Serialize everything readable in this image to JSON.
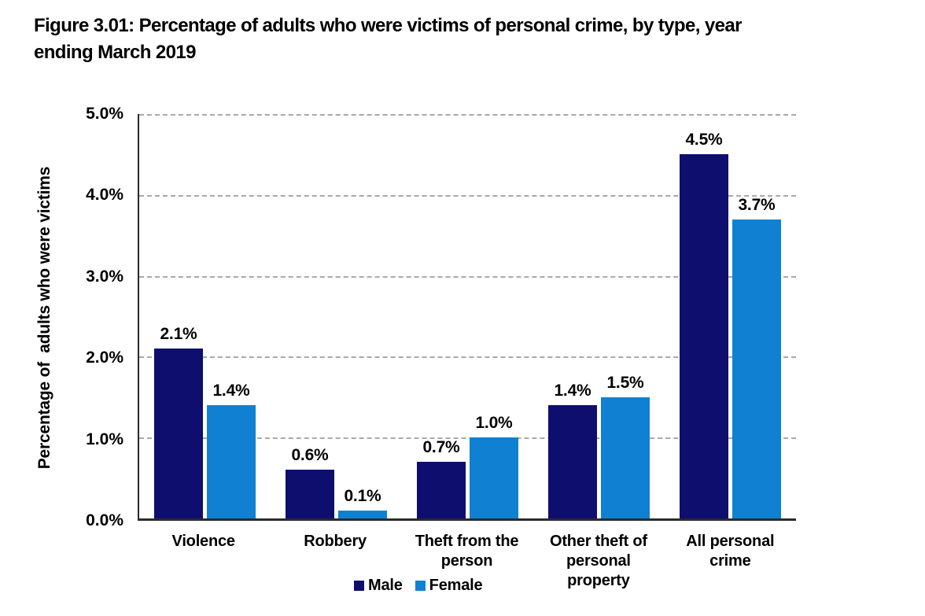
{
  "figure": {
    "title_line1": "Figure 3.01: Percentage of adults who were victims of personal crime, by type, year",
    "title_line2": "ending March 2019"
  },
  "colors": {
    "male": "#0e0e6f",
    "female": "#1081d2",
    "axis": "#2b2b2b",
    "gridline": "#a9a9a9"
  },
  "legend": {
    "items": [
      {
        "label": "Male",
        "color": "#0e0e6f"
      },
      {
        "label": "Female",
        "color": "#1081d2"
      }
    ]
  },
  "chart_data": {
    "type": "bar",
    "title": "Figure 3.01: Percentage of adults who were victims of personal crime, by type, year ending March 2019",
    "xlabel": "",
    "ylabel": "Percentage of  adults who were victims",
    "ylim": [
      0,
      5
    ],
    "y_ticks": [
      {
        "value": 5,
        "label": "5.0%"
      },
      {
        "value": 4,
        "label": "4.0%"
      },
      {
        "value": 3,
        "label": "3.0%"
      },
      {
        "value": 2,
        "label": "2.0%"
      },
      {
        "value": 1,
        "label": "1.0%"
      },
      {
        "value": 0,
        "label": "0.0%"
      }
    ],
    "grid": {
      "horizontal": true,
      "style": "dashed",
      "values": [
        1,
        2,
        3,
        4,
        5
      ]
    },
    "legend_position": "bottom-center",
    "categories": [
      "Violence",
      "Robbery",
      "Theft from the person",
      "Other theft of personal property",
      "All personal crime"
    ],
    "categories_lines": [
      [
        "Violence"
      ],
      [
        "Robbery"
      ],
      [
        "Theft from the",
        "person"
      ],
      [
        "Other theft of",
        "personal",
        "property"
      ],
      [
        "All personal",
        "crime"
      ]
    ],
    "series": [
      {
        "name": "Male",
        "color": "#0e0e6f",
        "values": [
          2.1,
          0.6,
          0.7,
          1.4,
          4.5
        ],
        "labels": [
          "2.1%",
          "0.6%",
          "0.7%",
          "1.4%",
          "4.5%"
        ]
      },
      {
        "name": "Female",
        "color": "#1081d2",
        "values": [
          1.4,
          0.1,
          1.0,
          1.5,
          3.7
        ],
        "labels": [
          "1.4%",
          "0.1%",
          "1.0%",
          "1.5%",
          "3.7%"
        ]
      }
    ]
  }
}
